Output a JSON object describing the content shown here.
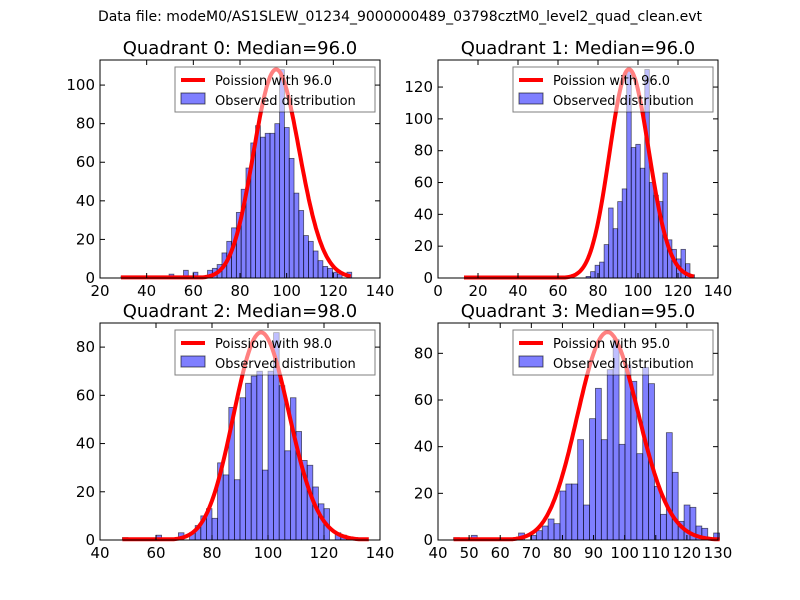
{
  "figure": {
    "suptitle": "Data file: modeM0/AS1SLEW_01234_9000000489_03798cztM0_level2_quad_clean.evt",
    "colors": {
      "bar_fill": "#0000ff",
      "bar_alpha": 0.5,
      "bar_edge": "#000000",
      "line": "#ff0000"
    }
  },
  "chart_data": [
    {
      "type": "bar",
      "title": "Quadrant 0: Median=96.0",
      "median": 96.0,
      "xlim": [
        20,
        140
      ],
      "ylim": [
        0,
        113
      ],
      "xticks": [
        20,
        40,
        60,
        80,
        100,
        120,
        140
      ],
      "yticks": [
        0,
        20,
        40,
        60,
        80,
        100
      ],
      "legend": {
        "placement": "upper-right",
        "entries": [
          "Poission with 96.0",
          "Observed distribution"
        ]
      },
      "bin_start": 29,
      "bin_width": 2.06,
      "values": [
        1,
        0,
        0,
        0,
        0,
        0,
        0,
        0,
        0,
        1,
        2,
        0,
        0,
        4,
        0,
        3,
        0,
        1,
        4,
        5,
        7,
        13,
        19,
        26,
        34,
        46,
        57,
        70,
        79,
        73,
        75,
        75,
        80,
        108,
        78,
        62,
        44,
        35,
        22,
        19,
        14,
        9,
        6,
        5,
        3,
        2,
        0,
        3
      ],
      "poisson_mean": 96.0,
      "poisson_peak": 108
    },
    {
      "type": "bar",
      "title": "Quadrant 1: Median=96.0",
      "median": 96.0,
      "xlim": [
        0,
        140
      ],
      "ylim": [
        0,
        137
      ],
      "xticks": [
        0,
        20,
        40,
        60,
        80,
        100,
        120,
        140
      ],
      "yticks": [
        0,
        20,
        40,
        60,
        80,
        100,
        120
      ],
      "legend": {
        "placement": "upper-right",
        "entries": [
          "Poission with 96.0",
          "Observed distribution"
        ]
      },
      "bin_start": 13,
      "bin_width": 2.26,
      "values": [
        0,
        0,
        0,
        0,
        0,
        0,
        0,
        0,
        0,
        0,
        0,
        0,
        0,
        0,
        0,
        0,
        0,
        0,
        1,
        1,
        0,
        0,
        0,
        0,
        0,
        0,
        0,
        1,
        4,
        8,
        10,
        21,
        44,
        31,
        48,
        56,
        131,
        82,
        84,
        69,
        131,
        60,
        52,
        48,
        66,
        24,
        18,
        12,
        18,
        9,
        2
      ],
      "poisson_mean": 96.0,
      "poisson_peak": 131
    },
    {
      "type": "bar",
      "title": "Quadrant 2: Median=98.0",
      "median": 98.0,
      "xlim": [
        40,
        140
      ],
      "ylim": [
        0,
        90
      ],
      "xticks": [
        40,
        60,
        80,
        100,
        120,
        140
      ],
      "yticks": [
        0,
        20,
        40,
        60,
        80
      ],
      "legend": {
        "placement": "upper-right",
        "entries": [
          "Poission with 98.0",
          "Observed distribution"
        ]
      },
      "bin_start": 48,
      "bin_width": 2.0,
      "values": [
        1,
        0,
        0,
        0,
        0,
        0,
        2,
        0,
        0,
        0,
        3,
        0,
        3,
        6,
        10,
        13,
        9,
        32,
        27,
        55,
        25,
        59,
        65,
        68,
        70,
        29,
        70,
        86,
        64,
        37,
        59,
        45,
        33,
        31,
        22,
        15,
        13,
        0,
        3,
        2,
        1,
        1,
        0,
        0
      ],
      "poisson_mean": 98.0,
      "poisson_peak": 86
    },
    {
      "type": "bar",
      "title": "Quadrant 3: Median=95.0",
      "median": 95.0,
      "xlim": [
        40,
        130
      ],
      "ylim": [
        0,
        93
      ],
      "xticks": [
        40,
        50,
        60,
        70,
        80,
        90,
        100,
        110,
        120,
        130
      ],
      "yticks": [
        0,
        20,
        40,
        60,
        80
      ],
      "legend": {
        "placement": "upper-right",
        "entries": [
          "Poission with 95.0",
          "Observed distribution"
        ]
      },
      "bin_start": 45,
      "bin_width": 1.9,
      "values": [
        1,
        0,
        0,
        2,
        0,
        0,
        0,
        0,
        0,
        0,
        0,
        3,
        0,
        2,
        4,
        6,
        9,
        7,
        21,
        24,
        24,
        43,
        15,
        52,
        65,
        43,
        73,
        86,
        41,
        75,
        68,
        37,
        74,
        67,
        23,
        11,
        46,
        29,
        8,
        15,
        14,
        6,
        5,
        0,
        3
      ],
      "poisson_mean": 95.0,
      "poisson_peak": 89
    }
  ]
}
